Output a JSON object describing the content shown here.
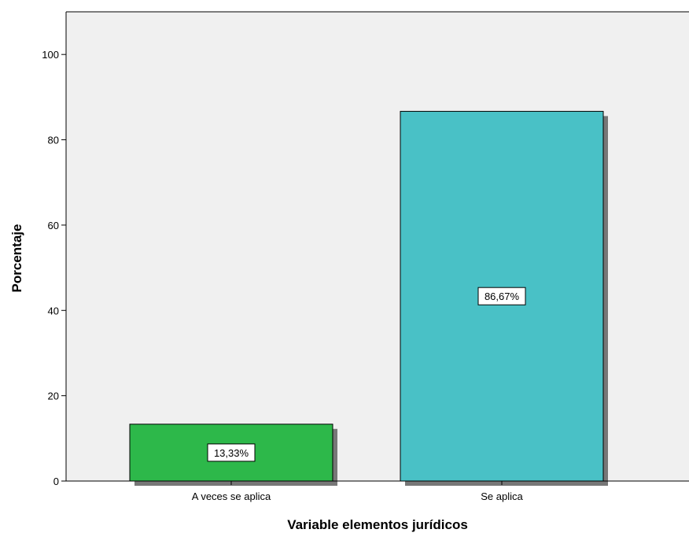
{
  "chart_data": {
    "type": "bar",
    "categories": [
      "A veces se aplica",
      "Se aplica"
    ],
    "values": [
      13.33,
      86.67
    ],
    "data_labels": [
      "13,33%",
      "86,67%"
    ],
    "colors": [
      "#2db84a",
      "#49c1c6"
    ],
    "xlabel": "Variable elementos jurídicos",
    "ylabel": "Porcentaje",
    "ylim": [
      0,
      110
    ],
    "yticks": [
      0,
      20,
      40,
      60,
      80,
      100
    ],
    "grid": false,
    "legend": "none",
    "plot_background": "#f0f0f0",
    "shadow_color": "#777777"
  }
}
